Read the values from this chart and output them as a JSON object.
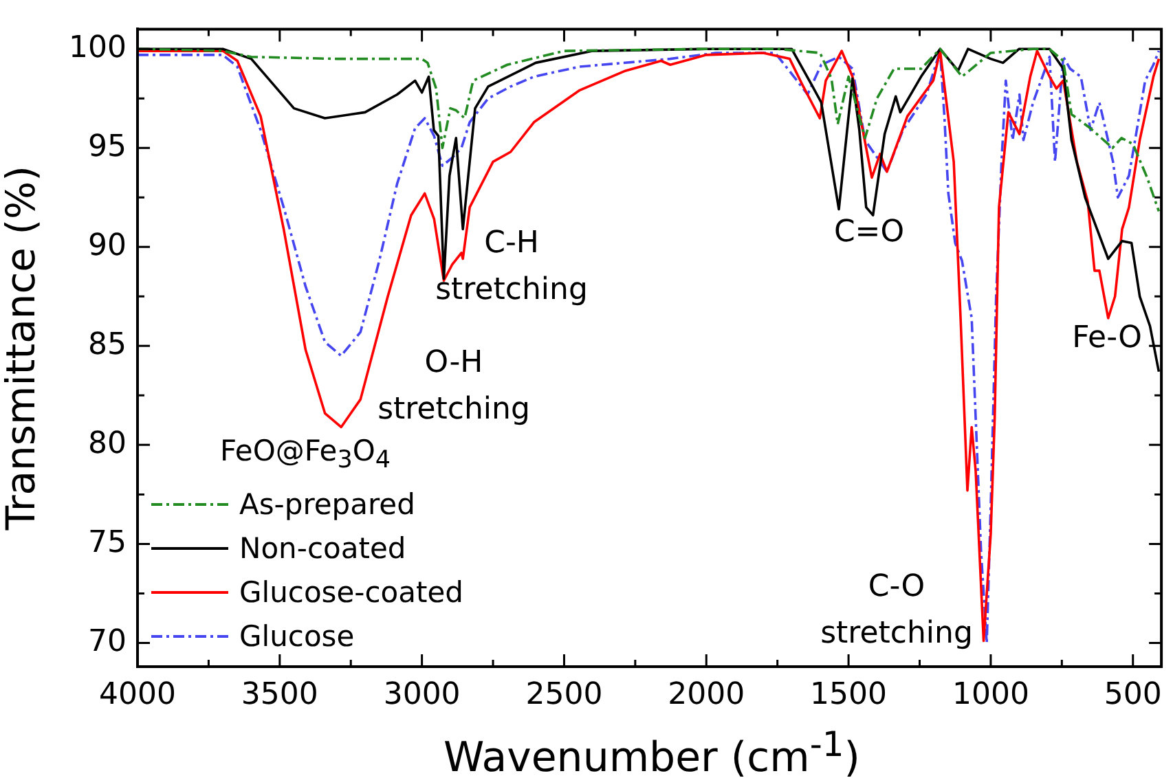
{
  "chart_data": {
    "type": "line",
    "xlabel": "Wavenumber (cm$^{-1}$)",
    "ylabel": "Transmittance (%)",
    "legend_title": "FeO@Fe$_{3}$O$_{4}$",
    "legend": "bottom left",
    "xlim": [
      4000,
      400
    ],
    "xticks": [
      4000,
      {
        "value": 3750,
        "label": null
      },
      3500,
      {
        "value": 3250,
        "label": null
      },
      3000,
      {
        "value": 2750,
        "label": null
      },
      2500,
      {
        "value": 2250,
        "label": null
      },
      2000,
      {
        "value": 1750,
        "label": null
      },
      1500,
      {
        "value": 1250,
        "label": null
      },
      1000,
      {
        "value": 750,
        "label": null
      },
      500
    ],
    "ylim": [
      68.8,
      101
    ],
    "yticks": [
      70,
      {
        "value": 72.5,
        "label": null
      },
      75,
      {
        "value": 77.5,
        "label": null
      },
      80,
      {
        "value": 82.5,
        "label": null
      },
      85,
      {
        "value": 87.5,
        "label": null
      },
      90,
      {
        "value": 92.5,
        "label": null
      },
      95,
      {
        "value": 97.5,
        "label": null
      },
      100
    ],
    "annotations": [
      "C-H\nstretching",
      "O-H\nstretching",
      "C=O",
      "C-O\nstretching",
      "Fe-O"
    ],
    "series": [
      {
        "name": "As-prepared",
        "color": "#228b22",
        "line_style": "dashdot",
        "x": [
          4000,
          3700,
          3600,
          3300,
          3000,
          2980,
          2950,
          2928,
          2900,
          2880,
          2850,
          2820,
          2700,
          2500,
          2000,
          1750,
          1600,
          1560,
          1538,
          1500,
          1470,
          1442,
          1400,
          1340,
          1245,
          1178,
          1101,
          1000,
          850,
          794,
          745,
          716,
          650,
          572,
          540,
          500,
          450,
          409
        ],
        "values": [
          100,
          99.9,
          99.6,
          99.5,
          99.5,
          99.3,
          98,
          95,
          97,
          96.9,
          96.5,
          98.4,
          99.2,
          99.9,
          100,
          100,
          99.8,
          98.5,
          96.2,
          98.6,
          97,
          95.5,
          97.5,
          99,
          99,
          100,
          98.6,
          99.8,
          100,
          100,
          99.4,
          96.7,
          96,
          95,
          95.5,
          95.2,
          93.5,
          91.8
        ]
      },
      {
        "name": "Non-coated",
        "color": "#000000",
        "line_style": "solid",
        "x": [
          4000,
          3700,
          3600,
          3450,
          3341,
          3200,
          3087,
          3024,
          3000,
          2976,
          2958,
          2942,
          2923,
          2903,
          2880,
          2856,
          2813,
          2767,
          2600,
          2400,
          2000,
          1700,
          1630,
          1596,
          1534,
          1486,
          1462,
          1438,
          1414,
          1373,
          1334,
          1318,
          1245,
          1178,
          1115,
          1080,
          1000,
          957,
          900,
          841,
          793,
          745,
          716,
          668,
          587,
          538,
          505,
          476,
          440,
          409
        ],
        "values": [
          100,
          100,
          99.5,
          97,
          96.5,
          96.8,
          97.7,
          98.4,
          97.8,
          98.6,
          95.9,
          95.6,
          88.4,
          93.6,
          95.5,
          90.9,
          97,
          98.1,
          99.3,
          99.9,
          100,
          100,
          98.2,
          97.3,
          91.9,
          98.5,
          95.9,
          92,
          91.6,
          95.7,
          97.6,
          96.8,
          98.6,
          100,
          98.9,
          100,
          99.5,
          99.3,
          100,
          100,
          100,
          99,
          95.4,
          92.5,
          89.4,
          90.3,
          90.2,
          87.5,
          86,
          83.7
        ]
      },
      {
        "name": "Glucose-coated",
        "color": "#ff0000",
        "line_style": "solid",
        "x": [
          4000,
          3700,
          3649,
          3567,
          3486,
          3409,
          3341,
          3284,
          3216,
          3120,
          3038,
          2990,
          2957,
          2923,
          2894,
          2861,
          2856,
          2832,
          2750,
          2688,
          2606,
          2447,
          2284,
          2159,
          2127,
          2000,
          1800,
          1707,
          1659,
          1601,
          1580,
          1524,
          1486,
          1418,
          1389,
          1365,
          1293,
          1202,
          1178,
          1130,
          1106,
          1082,
          1067,
          1053,
          1025,
          1000,
          986,
          971,
          938,
          899,
          861,
          837,
          793,
          769,
          745,
          697,
          659,
          635,
          618,
          587,
          563,
          538,
          514,
          476,
          428,
          409
        ],
        "values": [
          99.9,
          99.9,
          99.4,
          96.6,
          90.9,
          84.8,
          81.6,
          80.9,
          82.3,
          87.5,
          91.6,
          92.7,
          91.4,
          88.3,
          89.1,
          89.7,
          89.4,
          92,
          94.3,
          94.8,
          96.3,
          97.9,
          98.9,
          99.4,
          99.2,
          99.7,
          99.8,
          99.5,
          98.1,
          96.5,
          98.4,
          99.9,
          98.6,
          93.5,
          94.7,
          93.8,
          96.6,
          98.4,
          99.9,
          94.3,
          86.4,
          77.7,
          80.9,
          78.7,
          70.1,
          75.5,
          81.4,
          92,
          96.8,
          95.7,
          98.6,
          99.9,
          98.6,
          98,
          98.4,
          94.3,
          92.3,
          88.8,
          88.8,
          86.4,
          87.5,
          90.9,
          92,
          95.4,
          98.6,
          99.5
        ]
      },
      {
        "name": "Glucose",
        "color": "#4646f0",
        "line_style": "dashdot",
        "x": [
          4000,
          3700,
          3649,
          3567,
          3486,
          3409,
          3341,
          3284,
          3216,
          3150,
          3087,
          3024,
          2990,
          2957,
          2928,
          2894,
          2861,
          2832,
          2767,
          2688,
          2606,
          2447,
          2127,
          1966,
          1758,
          1692,
          1644,
          1596,
          1534,
          1486,
          1442,
          1365,
          1309,
          1226,
          1178,
          1163,
          1149,
          1125,
          1101,
          1067,
          1053,
          1034,
          1014,
          1000,
          981,
          962,
          947,
          923,
          899,
          885,
          851,
          793,
          774,
          745,
          721,
          683,
          649,
          618,
          570,
          553,
          514,
          490,
          457,
          428,
          409
        ],
        "values": [
          99.7,
          99.7,
          99.1,
          95.9,
          92,
          88,
          85.2,
          84.5,
          85.7,
          89.3,
          93.2,
          96,
          96.5,
          95.6,
          94.1,
          94.5,
          95,
          96.3,
          97.5,
          98.1,
          98.6,
          99.1,
          99.5,
          99.8,
          99.8,
          98.6,
          97.7,
          99.2,
          99.6,
          99,
          95.4,
          93.8,
          95.9,
          97.7,
          99.9,
          96.6,
          92.7,
          90.2,
          89.3,
          86.4,
          81.4,
          74.6,
          70,
          76.9,
          87.5,
          94.3,
          98.4,
          95.4,
          97.7,
          95.4,
          97.3,
          99.6,
          94.3,
          99.6,
          99,
          98.6,
          95.9,
          97.3,
          94.3,
          92.5,
          93.6,
          95.6,
          98.4,
          99.2,
          99.9
        ]
      }
    ]
  }
}
